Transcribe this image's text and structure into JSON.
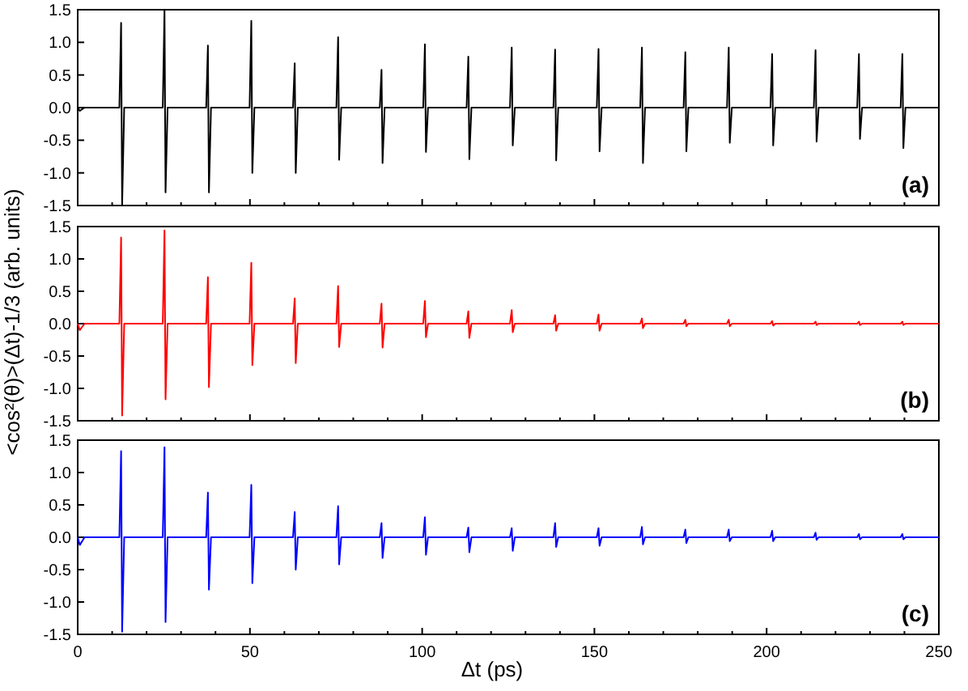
{
  "chart_data": [
    {
      "type": "line",
      "x": [
        0,
        0.6,
        2,
        12.1,
        12.6,
        12.9,
        13.5,
        24.7,
        25.2,
        25.5,
        26.1,
        37.3,
        37.8,
        38.1,
        38.7,
        49.9,
        50.4,
        50.7,
        51.3,
        62.5,
        63,
        63.3,
        63.9,
        75.1,
        75.6,
        75.9,
        76.5,
        87.7,
        88.2,
        88.5,
        89.1,
        100.3,
        100.8,
        101.1,
        101.7,
        112.9,
        113.4,
        113.7,
        114.3,
        125.5,
        126,
        126.3,
        126.9,
        138.1,
        138.6,
        138.9,
        139.5,
        150.7,
        151.2,
        151.5,
        152.1,
        163.3,
        163.8,
        164.1,
        164.7,
        175.9,
        176.4,
        176.7,
        177.3,
        188.5,
        189,
        189.3,
        189.9,
        201.1,
        201.6,
        201.9,
        202.5,
        213.7,
        214.2,
        214.5,
        215.1,
        226.3,
        226.8,
        227.1,
        227.7,
        238.9,
        239.4,
        239.7,
        240.3,
        250
      ],
      "series": [
        {
          "color": "#000000",
          "values": [
            0,
            -0.05,
            0,
            0,
            1.3,
            -1.5,
            0,
            0,
            1.5,
            -1.3,
            0,
            0,
            0.95,
            -1.3,
            0,
            0,
            1.33,
            -1.0,
            0,
            0,
            0.68,
            -1.0,
            0,
            0,
            1.08,
            -0.8,
            0,
            0,
            0.58,
            -0.85,
            0,
            0,
            0.97,
            -0.68,
            0,
            0,
            0.78,
            -0.79,
            0,
            0,
            0.92,
            -0.58,
            0,
            0,
            0.89,
            -0.81,
            0,
            0,
            0.9,
            -0.67,
            0,
            0,
            0.92,
            -0.85,
            0,
            0,
            0.85,
            -0.67,
            0,
            0,
            0.92,
            -0.54,
            0,
            0,
            0.82,
            -0.58,
            0,
            0,
            0.88,
            -0.52,
            0,
            0,
            0.82,
            -0.48,
            0,
            0,
            0.82,
            -0.62,
            0,
            0
          ]
        }
      ],
      "xlim": [
        0,
        250
      ],
      "ylim": [
        -1.5,
        1.5
      ],
      "xticks": [
        0,
        {
          "value": 10,
          "label": null
        },
        {
          "value": 20,
          "label": null
        },
        {
          "value": 30,
          "label": null
        },
        {
          "value": 40,
          "label": null
        },
        50,
        {
          "value": 60,
          "label": null
        },
        {
          "value": 70,
          "label": null
        },
        {
          "value": 80,
          "label": null
        },
        {
          "value": 90,
          "label": null
        },
        100,
        {
          "value": 110,
          "label": null
        },
        {
          "value": 120,
          "label": null
        },
        {
          "value": 130,
          "label": null
        },
        {
          "value": 140,
          "label": null
        },
        150,
        {
          "value": 160,
          "label": null
        },
        {
          "value": 170,
          "label": null
        },
        {
          "value": 180,
          "label": null
        },
        {
          "value": 190,
          "label": null
        },
        200,
        {
          "value": 210,
          "label": null
        },
        {
          "value": 220,
          "label": null
        },
        {
          "value": 230,
          "label": null
        },
        {
          "value": 240,
          "label": null
        },
        250
      ],
      "yticks": [
        -1.5,
        {
          "value": -1.0,
          "label": "-1.0"
        },
        -0.5,
        {
          "value": 0,
          "label": "0.0"
        },
        0.5,
        {
          "value": 1.0,
          "label": "1.0"
        },
        1.5
      ],
      "tick_labels": "y",
      "annotations": [
        "(a)"
      ]
    },
    {
      "type": "line",
      "x": [
        0,
        0.6,
        2,
        12.1,
        12.6,
        12.9,
        13.5,
        24.7,
        25.2,
        25.5,
        26.1,
        37.3,
        37.8,
        38.1,
        38.7,
        49.9,
        50.4,
        50.7,
        51.3,
        62.5,
        63,
        63.3,
        63.9,
        75.1,
        75.6,
        75.9,
        76.5,
        87.7,
        88.2,
        88.5,
        89.1,
        100.3,
        100.8,
        101.1,
        101.7,
        112.9,
        113.4,
        113.7,
        114.3,
        125.5,
        126,
        126.3,
        126.9,
        138.1,
        138.6,
        138.9,
        139.5,
        150.7,
        151.2,
        151.5,
        152.1,
        163.3,
        163.8,
        164.1,
        164.7,
        175.9,
        176.4,
        176.7,
        177.3,
        188.5,
        189,
        189.3,
        189.9,
        201.1,
        201.6,
        201.9,
        202.5,
        213.7,
        214.2,
        214.5,
        215.1,
        226.3,
        226.8,
        227.1,
        227.7,
        238.9,
        239.4,
        239.7,
        240.3,
        250
      ],
      "series": [
        {
          "color": "#ff0000",
          "values": [
            0,
            -0.1,
            0,
            0,
            1.33,
            -1.42,
            0,
            0,
            1.44,
            -1.17,
            0,
            0,
            0.72,
            -0.98,
            0,
            0,
            0.94,
            -0.64,
            0,
            0,
            0.39,
            -0.61,
            0,
            0,
            0.58,
            -0.36,
            0,
            0,
            0.31,
            -0.37,
            0,
            0,
            0.35,
            -0.21,
            0,
            0,
            0.19,
            -0.22,
            0,
            0,
            0.21,
            -0.13,
            0,
            0,
            0.13,
            -0.11,
            0,
            0,
            0.14,
            -0.11,
            0,
            0,
            0.08,
            -0.07,
            0,
            0,
            0.06,
            -0.04,
            0,
            0,
            0.06,
            -0.04,
            0,
            0,
            0.04,
            -0.03,
            0,
            0,
            0.03,
            -0.02,
            0,
            0,
            0.03,
            -0.02,
            0,
            0,
            0.03,
            -0.02,
            0,
            0
          ]
        }
      ],
      "xlim": [
        0,
        250
      ],
      "ylim": [
        -1.5,
        1.5
      ],
      "xticks": [
        0,
        {
          "value": 10,
          "label": null
        },
        {
          "value": 20,
          "label": null
        },
        {
          "value": 30,
          "label": null
        },
        {
          "value": 40,
          "label": null
        },
        50,
        {
          "value": 60,
          "label": null
        },
        {
          "value": 70,
          "label": null
        },
        {
          "value": 80,
          "label": null
        },
        {
          "value": 90,
          "label": null
        },
        100,
        {
          "value": 110,
          "label": null
        },
        {
          "value": 120,
          "label": null
        },
        {
          "value": 130,
          "label": null
        },
        {
          "value": 140,
          "label": null
        },
        150,
        {
          "value": 160,
          "label": null
        },
        {
          "value": 170,
          "label": null
        },
        {
          "value": 180,
          "label": null
        },
        {
          "value": 190,
          "label": null
        },
        200,
        {
          "value": 210,
          "label": null
        },
        {
          "value": 220,
          "label": null
        },
        {
          "value": 230,
          "label": null
        },
        {
          "value": 240,
          "label": null
        },
        250
      ],
      "yticks": [
        -1.5,
        {
          "value": -1.0,
          "label": "-1.0"
        },
        -0.5,
        {
          "value": 0,
          "label": "0.0"
        },
        0.5,
        {
          "value": 1.0,
          "label": "1.0"
        },
        1.5
      ],
      "tick_labels": "y",
      "ylabel": "<cos²(θ)>(Δt)-1/3 (arb. units)",
      "annotations": [
        "(b)"
      ]
    },
    {
      "type": "line",
      "x": [
        0,
        0.6,
        2,
        12.1,
        12.6,
        12.9,
        13.5,
        24.7,
        25.2,
        25.5,
        26.1,
        37.3,
        37.8,
        38.1,
        38.7,
        49.9,
        50.4,
        50.7,
        51.3,
        62.5,
        63,
        63.3,
        63.9,
        75.1,
        75.6,
        75.9,
        76.5,
        87.7,
        88.2,
        88.5,
        89.1,
        100.3,
        100.8,
        101.1,
        101.7,
        112.9,
        113.4,
        113.7,
        114.3,
        125.5,
        126,
        126.3,
        126.9,
        138.1,
        138.6,
        138.9,
        139.5,
        150.7,
        151.2,
        151.5,
        152.1,
        163.3,
        163.8,
        164.1,
        164.7,
        175.9,
        176.4,
        176.7,
        177.3,
        188.5,
        189,
        189.3,
        189.9,
        201.1,
        201.6,
        201.9,
        202.5,
        213.7,
        214.2,
        214.5,
        215.1,
        226.3,
        226.8,
        227.1,
        227.7,
        238.9,
        239.4,
        239.7,
        240.3,
        250
      ],
      "series": [
        {
          "color": "#0000ff",
          "values": [
            0,
            -0.12,
            0,
            0,
            1.33,
            -1.46,
            0,
            0,
            1.39,
            -1.31,
            0,
            0,
            0.69,
            -0.81,
            0,
            0,
            0.81,
            -0.71,
            0,
            0,
            0.39,
            -0.5,
            0,
            0,
            0.48,
            -0.42,
            0,
            0,
            0.22,
            -0.32,
            0,
            0,
            0.31,
            -0.27,
            0,
            0,
            0.15,
            -0.23,
            0,
            0,
            0.14,
            -0.21,
            0,
            0,
            0.22,
            -0.15,
            0,
            0,
            0.14,
            -0.13,
            0,
            0,
            0.16,
            -0.11,
            0,
            0,
            0.12,
            -0.09,
            0,
            0,
            0.12,
            -0.06,
            0,
            0,
            0.1,
            -0.06,
            0,
            0,
            0.07,
            -0.04,
            0,
            0,
            0.05,
            -0.03,
            0,
            0,
            0.05,
            -0.03,
            0,
            0
          ]
        }
      ],
      "xlim": [
        0,
        250
      ],
      "ylim": [
        -1.5,
        1.5
      ],
      "xticks": [
        0,
        {
          "value": 10,
          "label": null
        },
        {
          "value": 20,
          "label": null
        },
        {
          "value": 30,
          "label": null
        },
        {
          "value": 40,
          "label": null
        },
        50,
        {
          "value": 60,
          "label": null
        },
        {
          "value": 70,
          "label": null
        },
        {
          "value": 80,
          "label": null
        },
        {
          "value": 90,
          "label": null
        },
        100,
        {
          "value": 110,
          "label": null
        },
        {
          "value": 120,
          "label": null
        },
        {
          "value": 130,
          "label": null
        },
        {
          "value": 140,
          "label": null
        },
        150,
        {
          "value": 160,
          "label": null
        },
        {
          "value": 170,
          "label": null
        },
        {
          "value": 180,
          "label": null
        },
        {
          "value": 190,
          "label": null
        },
        200,
        {
          "value": 210,
          "label": null
        },
        {
          "value": 220,
          "label": null
        },
        {
          "value": 230,
          "label": null
        },
        {
          "value": 240,
          "label": null
        },
        250
      ],
      "yticks": [
        -1.5,
        {
          "value": -1.0,
          "label": "-1.0"
        },
        -0.5,
        {
          "value": 0,
          "label": "0.0"
        },
        0.5,
        {
          "value": 1.0,
          "label": "1.0"
        },
        1.5
      ],
      "xlabel": "Δt (ps)",
      "annotations": [
        "(c)"
      ]
    }
  ]
}
